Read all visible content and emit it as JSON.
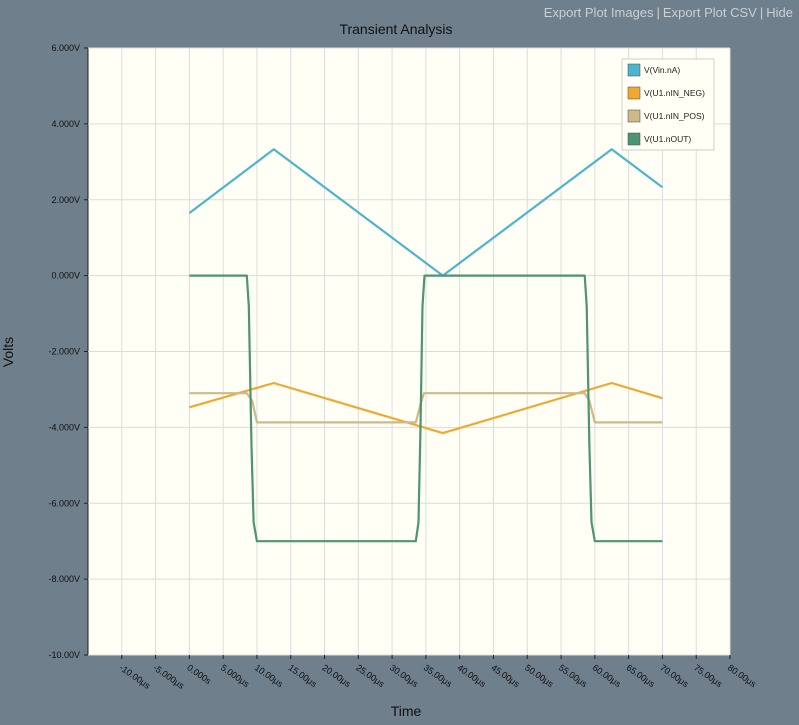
{
  "links": {
    "export_images": "Export Plot Images",
    "export_csv": "Export Plot CSV",
    "hide": "Hide",
    "separator": "|"
  },
  "colors": {
    "background": "#6f7f8c",
    "plot_bg": "#fffff5",
    "grid": "#dcdcdc",
    "text": "#111111"
  },
  "chart_data": {
    "type": "line",
    "title": "Transient Analysis",
    "xlabel": "Time",
    "ylabel": "Volts",
    "xlim": [
      -15,
      80
    ],
    "ylim": [
      -10,
      6
    ],
    "xticks": [
      -10,
      -5,
      0,
      5,
      10,
      15,
      20,
      25,
      30,
      35,
      40,
      45,
      50,
      55,
      60,
      65,
      70,
      75,
      80
    ],
    "xtick_labels": [
      "-10.00μs",
      "-5.000μs",
      "0.000s",
      "5.000μs",
      "10.00μs",
      "15.00μs",
      "20.00μs",
      "25.00μs",
      "30.00μs",
      "35.00μs",
      "40.00μs",
      "45.00μs",
      "50.00μs",
      "55.00μs",
      "60.00μs",
      "65.00μs",
      "70.00μs",
      "75.00μs",
      "80.00μs"
    ],
    "yticks": [
      6,
      4,
      2,
      0,
      -2,
      -4,
      -6,
      -8,
      -10
    ],
    "ytick_labels": [
      "6.000V",
      "4.000V",
      "2.000V",
      "0.000V",
      "-2.000V",
      "-4.000V",
      "-6.000V",
      "-8.000V",
      "-10.00V"
    ],
    "grid": true,
    "legend_position": "top-right",
    "series": [
      {
        "name": "V(Vin.nA)",
        "color": "#4eb3cf",
        "x": [
          0,
          12.5,
          37.5,
          62.5,
          70
        ],
        "y": [
          1.65,
          3.33,
          0.0,
          3.33,
          2.33
        ]
      },
      {
        "name": "V(U1.nIN_NEG)",
        "color": "#f0a830",
        "x": [
          0,
          12.5,
          37.5,
          62.5,
          70
        ],
        "y": [
          -3.47,
          -2.83,
          -4.15,
          -2.83,
          -3.23
        ]
      },
      {
        "name": "V(U1.nIN_POS)",
        "color": "#cdb98a",
        "x": [
          0,
          8.5,
          9.3,
          10,
          33.5,
          34.2,
          34.7,
          58.5,
          59.2,
          60,
          70
        ],
        "y": [
          -3.1,
          -3.1,
          -3.3,
          -3.87,
          -3.87,
          -3.4,
          -3.1,
          -3.1,
          -3.3,
          -3.87,
          -3.87
        ]
      },
      {
        "name": "V(U1.nOUT)",
        "color": "#4e9472",
        "x": [
          0,
          8.5,
          8.8,
          9.2,
          9.5,
          10,
          33.5,
          33.9,
          34.2,
          34.5,
          34.8,
          58.5,
          58.8,
          59.2,
          59.5,
          60,
          70
        ],
        "y": [
          0,
          0,
          -0.8,
          -4.5,
          -6.5,
          -7,
          -7,
          -6.5,
          -4,
          -0.8,
          0,
          0,
          -0.8,
          -4.5,
          -6.5,
          -7,
          -7
        ]
      }
    ]
  }
}
